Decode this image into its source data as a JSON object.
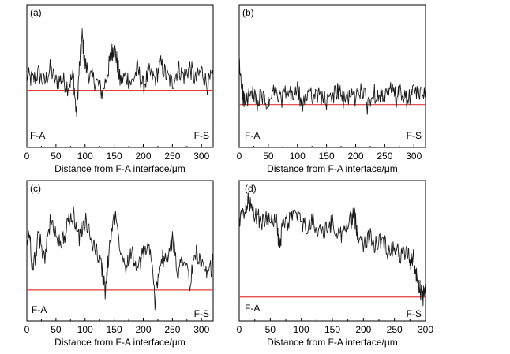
{
  "figure": {
    "panels": [
      {
        "id": "a",
        "label": "(a)",
        "left_tag": "F-A",
        "right_tag": "F-S",
        "xlabel": "Distance from F-A interface/μm"
      },
      {
        "id": "b",
        "label": "(b)",
        "left_tag": "F-A",
        "right_tag": "F-S",
        "xlabel": "Distance from F-A interface/μm"
      },
      {
        "id": "c",
        "label": "(c)",
        "left_tag": "F-A",
        "right_tag": "F-S",
        "xlabel": "Distance from F-A interface/μm"
      },
      {
        "id": "d",
        "label": "(d)",
        "left_tag": "F-A",
        "right_tag": "F-S",
        "xlabel": "Distance from F-A interface/μm"
      }
    ],
    "colors": {
      "signal": "#1a1a1a",
      "baseline": "#e03c3c",
      "axis": "#000000"
    }
  },
  "chart_data": [
    {
      "type": "line",
      "panel": "(a)",
      "xlabel": "Distance from F-A interface/μm",
      "ylabel": "",
      "xlim": [
        0,
        320
      ],
      "ylim": [
        0,
        1
      ],
      "xticks": [
        0,
        50,
        100,
        150,
        200,
        250,
        300
      ],
      "grid": false,
      "baseline_y": 0.4,
      "series": [
        {
          "x": [
            0,
            10,
            20,
            30,
            40,
            50,
            60,
            70,
            80,
            85,
            90,
            95,
            100,
            110,
            120,
            130,
            140,
            145,
            150,
            155,
            160,
            170,
            180,
            190,
            200,
            210,
            220,
            230,
            240,
            250,
            260,
            270,
            280,
            290,
            300,
            310,
            320
          ],
          "y": [
            0.5,
            0.47,
            0.52,
            0.45,
            0.55,
            0.46,
            0.48,
            0.43,
            0.5,
            0.22,
            0.55,
            0.78,
            0.58,
            0.49,
            0.46,
            0.38,
            0.55,
            0.66,
            0.7,
            0.6,
            0.47,
            0.5,
            0.45,
            0.55,
            0.43,
            0.52,
            0.48,
            0.58,
            0.5,
            0.45,
            0.55,
            0.5,
            0.56,
            0.47,
            0.54,
            0.44,
            0.5
          ]
        }
      ]
    },
    {
      "type": "line",
      "panel": "(b)",
      "xlabel": "Distance from F-A interface/μm",
      "ylabel": "",
      "xlim": [
        0,
        320
      ],
      "ylim": [
        0,
        1
      ],
      "xticks": [
        0,
        50,
        100,
        150,
        200,
        250,
        300
      ],
      "grid": false,
      "baseline_y": 0.3,
      "series": [
        {
          "x": [
            0,
            5,
            10,
            20,
            30,
            40,
            50,
            60,
            70,
            80,
            90,
            100,
            110,
            120,
            130,
            140,
            150,
            160,
            170,
            180,
            190,
            200,
            210,
            220,
            230,
            240,
            250,
            260,
            270,
            280,
            290,
            300,
            310,
            320
          ],
          "y": [
            0.58,
            0.4,
            0.3,
            0.38,
            0.32,
            0.35,
            0.29,
            0.4,
            0.33,
            0.38,
            0.36,
            0.4,
            0.28,
            0.42,
            0.34,
            0.38,
            0.31,
            0.36,
            0.4,
            0.32,
            0.38,
            0.34,
            0.42,
            0.3,
            0.37,
            0.39,
            0.33,
            0.41,
            0.35,
            0.38,
            0.32,
            0.4,
            0.36,
            0.42
          ]
        }
      ]
    },
    {
      "type": "line",
      "panel": "(c)",
      "xlabel": "Distance from F-A interface/μm",
      "ylabel": "",
      "xlim": [
        0,
        320
      ],
      "ylim": [
        0,
        1
      ],
      "xticks": [
        0,
        50,
        100,
        150,
        200,
        250,
        300
      ],
      "grid": false,
      "baseline_y": 0.22,
      "series": [
        {
          "x": [
            0,
            5,
            10,
            20,
            30,
            40,
            50,
            60,
            70,
            80,
            90,
            100,
            110,
            120,
            130,
            135,
            140,
            150,
            160,
            170,
            180,
            190,
            200,
            210,
            220,
            230,
            240,
            250,
            260,
            270,
            280,
            290,
            300,
            310,
            320
          ],
          "y": [
            0.55,
            0.62,
            0.35,
            0.6,
            0.45,
            0.7,
            0.62,
            0.55,
            0.68,
            0.75,
            0.6,
            0.72,
            0.58,
            0.5,
            0.35,
            0.2,
            0.45,
            0.78,
            0.55,
            0.4,
            0.5,
            0.35,
            0.48,
            0.55,
            0.15,
            0.45,
            0.42,
            0.58,
            0.35,
            0.48,
            0.25,
            0.5,
            0.4,
            0.3,
            0.42
          ]
        }
      ]
    },
    {
      "type": "line",
      "panel": "(d)",
      "xlabel": "Distance from F-A interface/μm",
      "ylabel": "",
      "xlim": [
        0,
        300
      ],
      "ylim": [
        0,
        1
      ],
      "xticks": [
        0,
        50,
        100,
        150,
        200,
        250,
        300
      ],
      "grid": false,
      "baseline_y": 0.17,
      "series": [
        {
          "x": [
            0,
            10,
            15,
            20,
            30,
            40,
            50,
            60,
            65,
            70,
            80,
            90,
            100,
            110,
            120,
            130,
            140,
            150,
            160,
            170,
            180,
            185,
            190,
            200,
            210,
            220,
            230,
            240,
            250,
            260,
            270,
            275,
            280,
            285,
            290,
            295,
            300
          ],
          "y": [
            0.72,
            0.76,
            0.86,
            0.78,
            0.74,
            0.7,
            0.76,
            0.7,
            0.52,
            0.68,
            0.72,
            0.76,
            0.7,
            0.66,
            0.72,
            0.62,
            0.66,
            0.7,
            0.6,
            0.64,
            0.72,
            0.76,
            0.64,
            0.56,
            0.6,
            0.54,
            0.58,
            0.5,
            0.54,
            0.46,
            0.5,
            0.42,
            0.46,
            0.32,
            0.26,
            0.16,
            0.22
          ]
        }
      ]
    }
  ]
}
